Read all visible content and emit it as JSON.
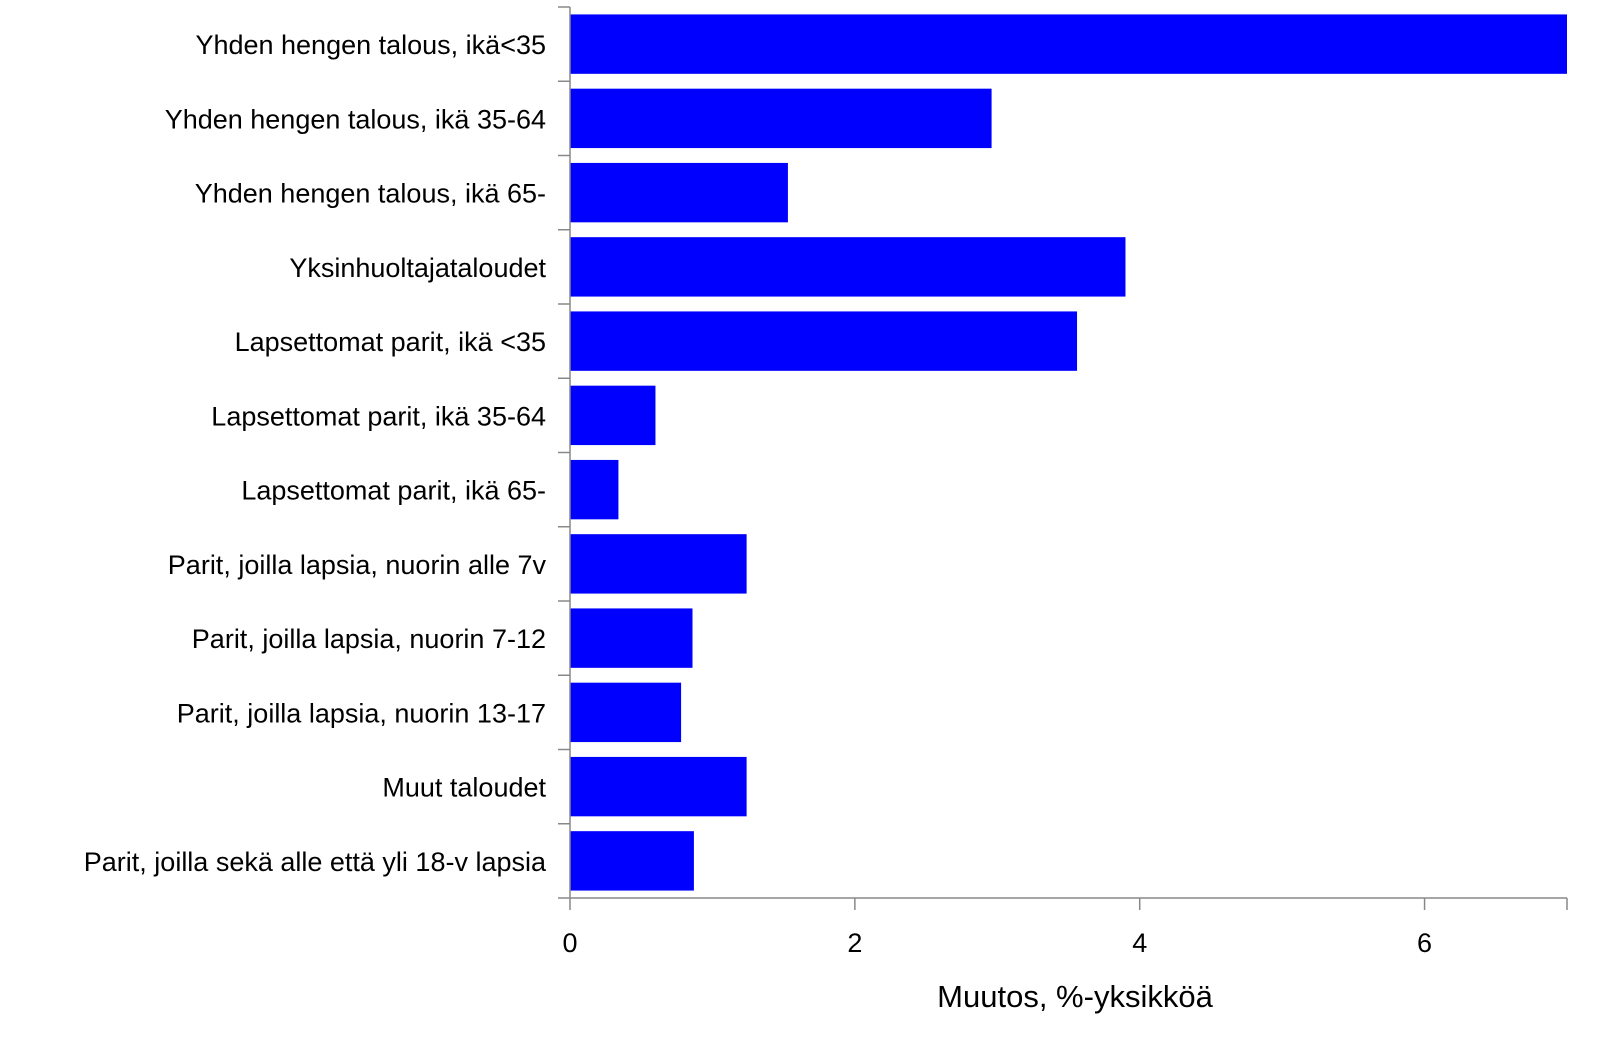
{
  "chart_data": {
    "type": "bar",
    "orientation": "horizontal",
    "categories": [
      "Yhden hengen talous, ikä<35",
      "Yhden hengen talous, ikä 35-64",
      "Yhden hengen talous, ikä 65-",
      "Yksinhuoltajataloudet",
      "Lapsettomat parit, ikä <35",
      "Lapsettomat parit, ikä 35-64",
      "Lapsettomat parit, ikä 65-",
      "Parit, joilla lapsia, nuorin alle 7v",
      "Parit, joilla lapsia, nuorin 7-12",
      "Parit, joilla lapsia, nuorin 13-17",
      "Muut taloudet",
      "Parit, joilla sekä alle että yli 18-v lapsia"
    ],
    "values": [
      7.0,
      2.96,
      1.53,
      3.9,
      3.56,
      0.6,
      0.34,
      1.24,
      0.86,
      0.78,
      1.24,
      0.87
    ],
    "xlabel": "Muutos, %-yksikköä",
    "xlim": [
      0,
      7
    ],
    "xticks": [
      0,
      2,
      4,
      6
    ],
    "xtick_labels": [
      "0",
      "2",
      "4",
      "6"
    ],
    "bar_color": "#0000ff",
    "grid": false,
    "legend": "none"
  }
}
